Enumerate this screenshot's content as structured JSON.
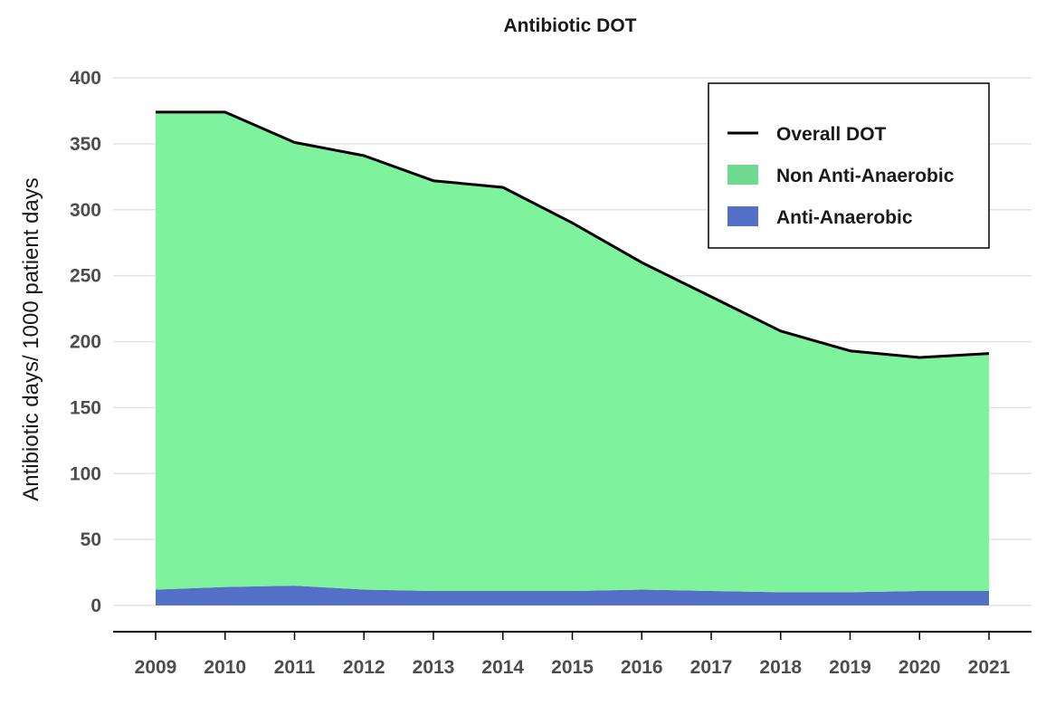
{
  "chart_data": {
    "type": "area",
    "title": "Antibiotic DOT",
    "xlabel": "",
    "ylabel": "Antibiotic days/ 1000 patient days",
    "x": [
      2009,
      2010,
      2011,
      2012,
      2013,
      2014,
      2015,
      2016,
      2017,
      2018,
      2019,
      2020,
      2021
    ],
    "ylim": [
      -20,
      400
    ],
    "yticks": [
      0,
      50,
      100,
      150,
      200,
      250,
      300,
      350,
      400
    ],
    "grid": true,
    "stacked": true,
    "legend_position": "top-right",
    "series": [
      {
        "name": "Anti-Anaerobic",
        "type": "area",
        "color": "#5470c6",
        "values": [
          12,
          14,
          15,
          12,
          11,
          11,
          11,
          12,
          11,
          10,
          10,
          11,
          11
        ]
      },
      {
        "name": "Non Anti-Anaerobic",
        "type": "area",
        "color": "#7ef29d",
        "legend_color": "#6fd98f",
        "values": [
          362,
          360,
          336,
          329,
          311,
          306,
          279,
          248,
          223,
          198,
          183,
          177,
          180
        ]
      },
      {
        "name": "Overall DOT",
        "type": "line",
        "color": "#000000",
        "values": [
          374,
          374,
          351,
          341,
          322,
          317,
          290,
          260,
          234,
          208,
          193,
          188,
          191
        ]
      }
    ],
    "legend": [
      {
        "label": "Overall DOT",
        "kind": "line",
        "color": "#000000"
      },
      {
        "label": "Non Anti-Anaerobic",
        "kind": "box",
        "color": "#6fd98f"
      },
      {
        "label": "Anti-Anaerobic",
        "kind": "box",
        "color": "#5470c6"
      }
    ]
  }
}
